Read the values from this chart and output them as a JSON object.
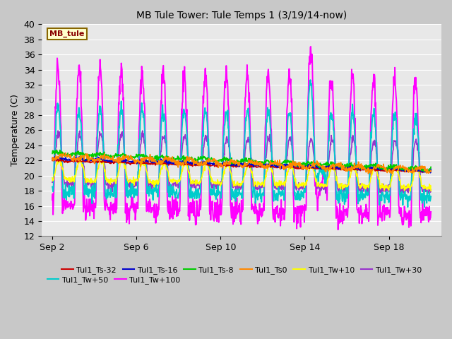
{
  "title": "MB Tule Tower: Tule Temps 1 (3/19/14-now)",
  "ylabel": "Temperature (C)",
  "ylim": [
    12,
    40
  ],
  "yticks": [
    12,
    14,
    16,
    18,
    20,
    22,
    24,
    26,
    28,
    30,
    32,
    34,
    36,
    38,
    40
  ],
  "annotation_label": "MB_tule",
  "annotation_bg": "#ffffcc",
  "annotation_border": "#886600",
  "annotation_text_color": "#880000",
  "series": [
    {
      "label": "Tul1_Ts-32",
      "color": "#cc0000",
      "lw": 1.2,
      "zorder": 5
    },
    {
      "label": "Tul1_Ts-16",
      "color": "#0000cc",
      "lw": 1.2,
      "zorder": 5
    },
    {
      "label": "Tul1_Ts-8",
      "color": "#00cc00",
      "lw": 1.2,
      "zorder": 5
    },
    {
      "label": "Tul1_Ts0",
      "color": "#ff8800",
      "lw": 1.2,
      "zorder": 5
    },
    {
      "label": "Tul1_Tw+10",
      "color": "#ffff00",
      "lw": 1.2,
      "zorder": 4
    },
    {
      "label": "Tul1_Tw+30",
      "color": "#9933cc",
      "lw": 1.2,
      "zorder": 3
    },
    {
      "label": "Tul1_Tw+50",
      "color": "#00cccc",
      "lw": 1.4,
      "zorder": 3
    },
    {
      "label": "Tul1_Tw+100",
      "color": "#ff00ff",
      "lw": 1.4,
      "zorder": 2
    }
  ],
  "x_tick_labels": [
    "Sep 2",
    "Sep 6",
    "Sep 10",
    "Sep 14",
    "Sep 18"
  ],
  "x_tick_positions": [
    1,
    5,
    9,
    13,
    17
  ],
  "x_range": [
    0.5,
    19.5
  ],
  "figsize": [
    6.4,
    4.8
  ],
  "dpi": 100
}
